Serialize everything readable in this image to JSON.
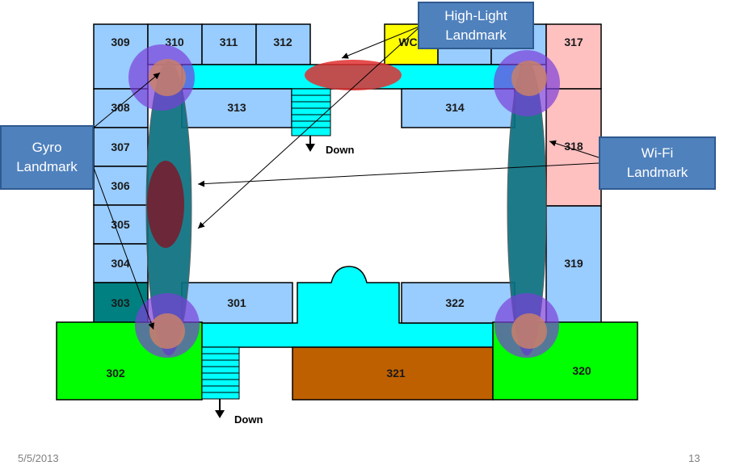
{
  "rooms": {
    "r309": "309",
    "r310": "310",
    "r311": "311",
    "r312": "312",
    "rWC": "WC",
    "r317": "317",
    "r308": "308",
    "r313": "313",
    "r314": "314",
    "r307": "307",
    "r318": "318",
    "r306": "306",
    "r305": "305",
    "r304": "304",
    "r319": "319",
    "r303": "303",
    "r301": "301",
    "r322": "322",
    "r302": "302",
    "r321": "321",
    "r320": "320"
  },
  "stairs": {
    "top_label": "Down",
    "bottom_label": "Down"
  },
  "callouts": {
    "highlight": {
      "line1": "High-Light",
      "line2": "Landmark"
    },
    "gyro": {
      "line1": "Gyro",
      "line2": "Landmark"
    },
    "wifi": {
      "line1": "Wi-Fi",
      "line2": "Landmark"
    }
  },
  "footer": {
    "date": "5/5/2013",
    "page": "13"
  },
  "colors": {
    "room_blue": "#99ccff",
    "corridor": "#00ffff",
    "room_green": "#00ff00",
    "room_brown": "#bf6000",
    "room_pink": "#ffc0c0",
    "room_teal": "#008080",
    "wc_yellow": "#ffff00",
    "callout_fill": "#4f81bd"
  }
}
